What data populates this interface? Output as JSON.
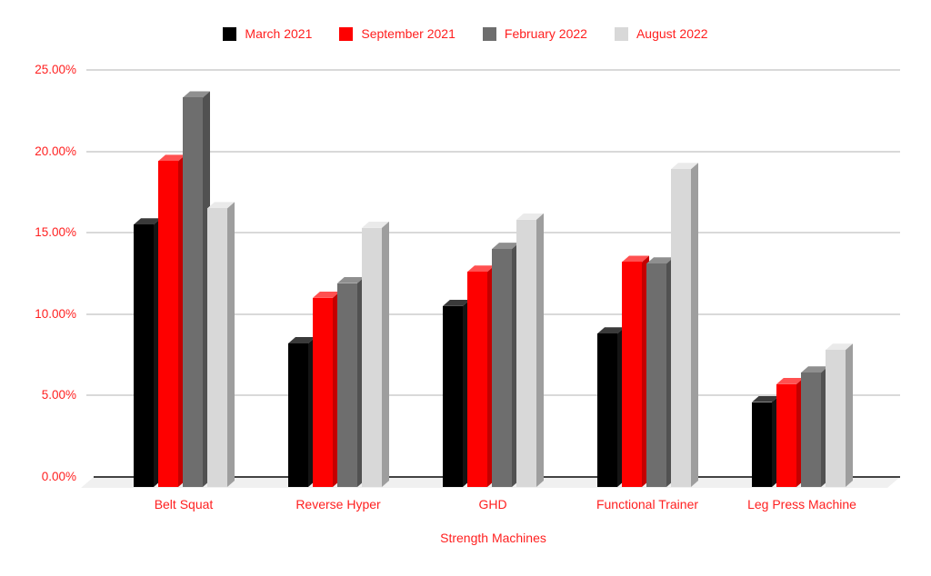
{
  "chart_data": {
    "type": "bar",
    "style": "3d-column",
    "title": "",
    "xlabel": "Strength Machines",
    "ylabel": "",
    "categories": [
      "Belt Squat",
      "Reverse Hyper",
      "GHD",
      "Functional Trainer",
      "Leg Press Machine"
    ],
    "series": [
      {
        "name": "March 2021",
        "color": "#000000",
        "top_color": "#3a3a3a",
        "side_color": "#141414",
        "values": [
          15.5,
          8.2,
          10.5,
          8.8,
          4.6
        ]
      },
      {
        "name": "September 2021",
        "color": "#fe0000",
        "top_color": "#ff5050",
        "side_color": "#c40000",
        "values": [
          19.4,
          11.0,
          12.6,
          13.2,
          5.7
        ]
      },
      {
        "name": "February 2022",
        "color": "#6e6e6e",
        "top_color": "#8f8f8f",
        "side_color": "#515151",
        "values": [
          23.3,
          11.9,
          14.0,
          13.1,
          6.4
        ]
      },
      {
        "name": "August 2022",
        "color": "#d8d8d8",
        "top_color": "#eaeaea",
        "side_color": "#9e9e9e",
        "values": [
          16.5,
          15.3,
          15.8,
          18.9,
          7.8
        ]
      }
    ],
    "ylim": [
      0,
      25
    ],
    "y_tick_step": 5,
    "y_tick_labels": [
      "0.00%",
      "5.00%",
      "10.00%",
      "15.00%",
      "20.00%",
      "25.00%"
    ],
    "grid": true,
    "legend_position": "top",
    "colors": {
      "text": "#ff1f1f",
      "gridline": "#d9d9d9",
      "axis_line": "#424242",
      "floor": "#f0f0f0",
      "background": "#ffffff"
    }
  }
}
